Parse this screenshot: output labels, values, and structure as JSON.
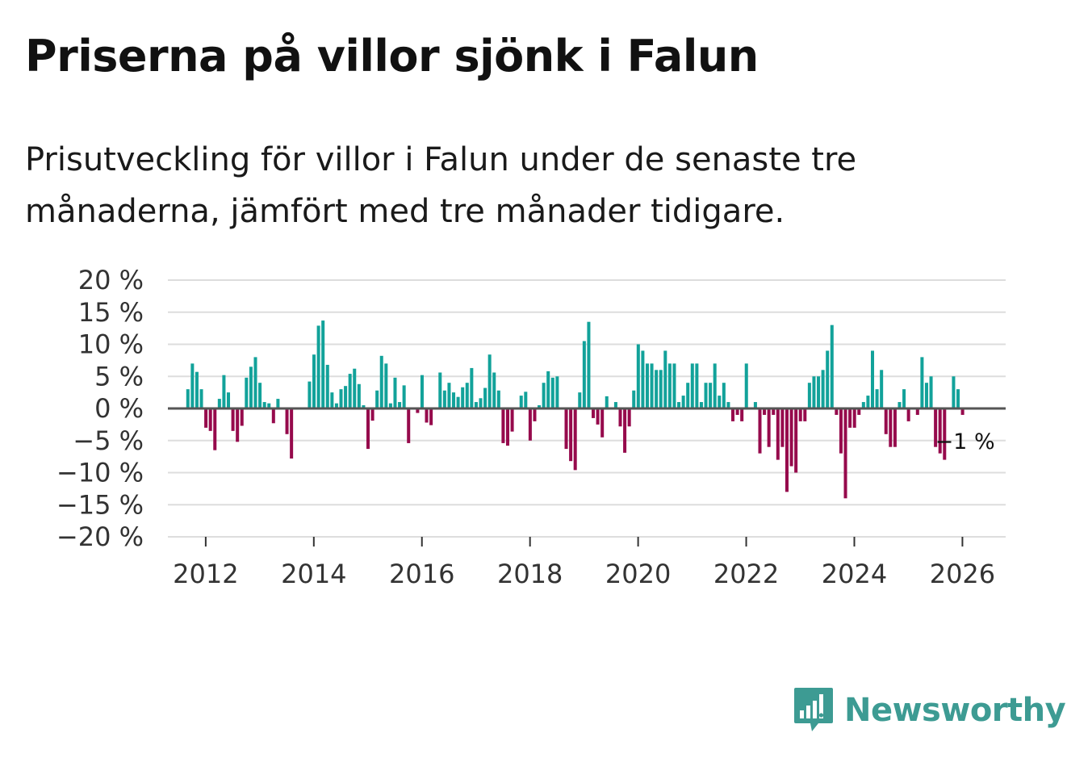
{
  "title": "Priserna på villor sjönk i Falun",
  "subtitle": "Prisutveckling för villor i Falun under de senaste tre månaderna, jämfört med tre månader tidigare.",
  "brand": {
    "name": "Newsworthy",
    "icon": "bar-chart-speech-bubble-icon"
  },
  "colors": {
    "positive": "#12a29a",
    "negative": "#960a4c",
    "grid": "#dddddd",
    "zero": "#555555",
    "brand": "#3d9b93"
  },
  "chart_data": {
    "type": "bar",
    "title": "Priserna på villor sjönk i Falun",
    "xlabel": "",
    "ylabel": "",
    "x_start": 2011.67,
    "x_step": 0.08333,
    "xlim": [
      2011.3,
      2026.8
    ],
    "ylim": [
      -20,
      20
    ],
    "xticks": [
      2012,
      2014,
      2016,
      2018,
      2020,
      2022,
      2024,
      2026
    ],
    "xtick_labels": [
      "2012",
      "2014",
      "2016",
      "2018",
      "2020",
      "2022",
      "2024",
      "2026"
    ],
    "yticks": [
      -20,
      -15,
      -10,
      -5,
      0,
      5,
      10,
      15,
      20
    ],
    "ytick_labels": [
      "−20 %",
      "−15 %",
      "−10 %",
      "−5 %",
      "0 %",
      "5 %",
      "10 %",
      "15 %",
      "20 %"
    ],
    "grid": true,
    "values": [
      3.0,
      7.0,
      5.7,
      3.0,
      -3.0,
      -3.5,
      -6.5,
      1.5,
      5.2,
      2.5,
      -3.5,
      -5.2,
      -2.7,
      4.8,
      6.5,
      8.0,
      4.0,
      1.0,
      0.8,
      -2.3,
      1.5,
      0.0,
      -4.0,
      -7.8,
      0.0,
      0.0,
      0.0,
      4.2,
      8.4,
      12.9,
      13.7,
      6.8,
      2.5,
      0.8,
      3.0,
      3.5,
      5.4,
      6.2,
      3.8,
      0.5,
      -6.3,
      -1.9,
      2.8,
      8.2,
      7.0,
      0.8,
      4.8,
      1.0,
      3.6,
      -5.4,
      0.0,
      -0.7,
      5.2,
      -2.2,
      -2.6,
      0.0,
      5.6,
      2.8,
      4.0,
      2.5,
      1.8,
      3.3,
      4.0,
      6.3,
      1.0,
      1.6,
      3.2,
      8.4,
      5.6,
      2.8,
      -5.4,
      -5.8,
      -3.6,
      0.0,
      2.0,
      2.6,
      -5.0,
      -2.0,
      0.5,
      4.0,
      5.8,
      4.8,
      5.0,
      0.0,
      -6.3,
      -8.2,
      -9.6,
      2.5,
      10.5,
      13.5,
      -1.5,
      -2.5,
      -4.5,
      1.9,
      0.0,
      1.0,
      -2.8,
      -6.9,
      -2.8,
      2.8,
      10.0,
      9.0,
      7.0,
      7.0,
      6.0,
      6.0,
      9.0,
      7.0,
      7.0,
      1.0,
      2.0,
      4.0,
      7.0,
      7.0,
      1.0,
      4.0,
      4.0,
      7.0,
      2.0,
      4.0,
      1.0,
      -2.0,
      -1.0,
      -2.0,
      7.0,
      0.0,
      1.0,
      -7.0,
      -1.0,
      -6.0,
      -1.0,
      -8.0,
      -6.0,
      -13.0,
      -9.0,
      -10.0,
      -2.0,
      -2.0,
      4.0,
      5.0,
      5.0,
      6.0,
      9.0,
      13.0,
      -1.0,
      -7.0,
      -14.0,
      -3.0,
      -3.0,
      -1.0,
      1.0,
      2.0,
      9.0,
      3.0,
      6.0,
      -4.0,
      -6.0,
      -6.0,
      1.0,
      3.0,
      -2.0,
      0.0,
      -1.0,
      8.0,
      4.0,
      5.0,
      -6.0,
      -7.0,
      -8.0,
      0.0,
      5.0,
      3.0,
      -1.0
    ],
    "annotation": {
      "text": "−1 %",
      "value": -1
    }
  }
}
